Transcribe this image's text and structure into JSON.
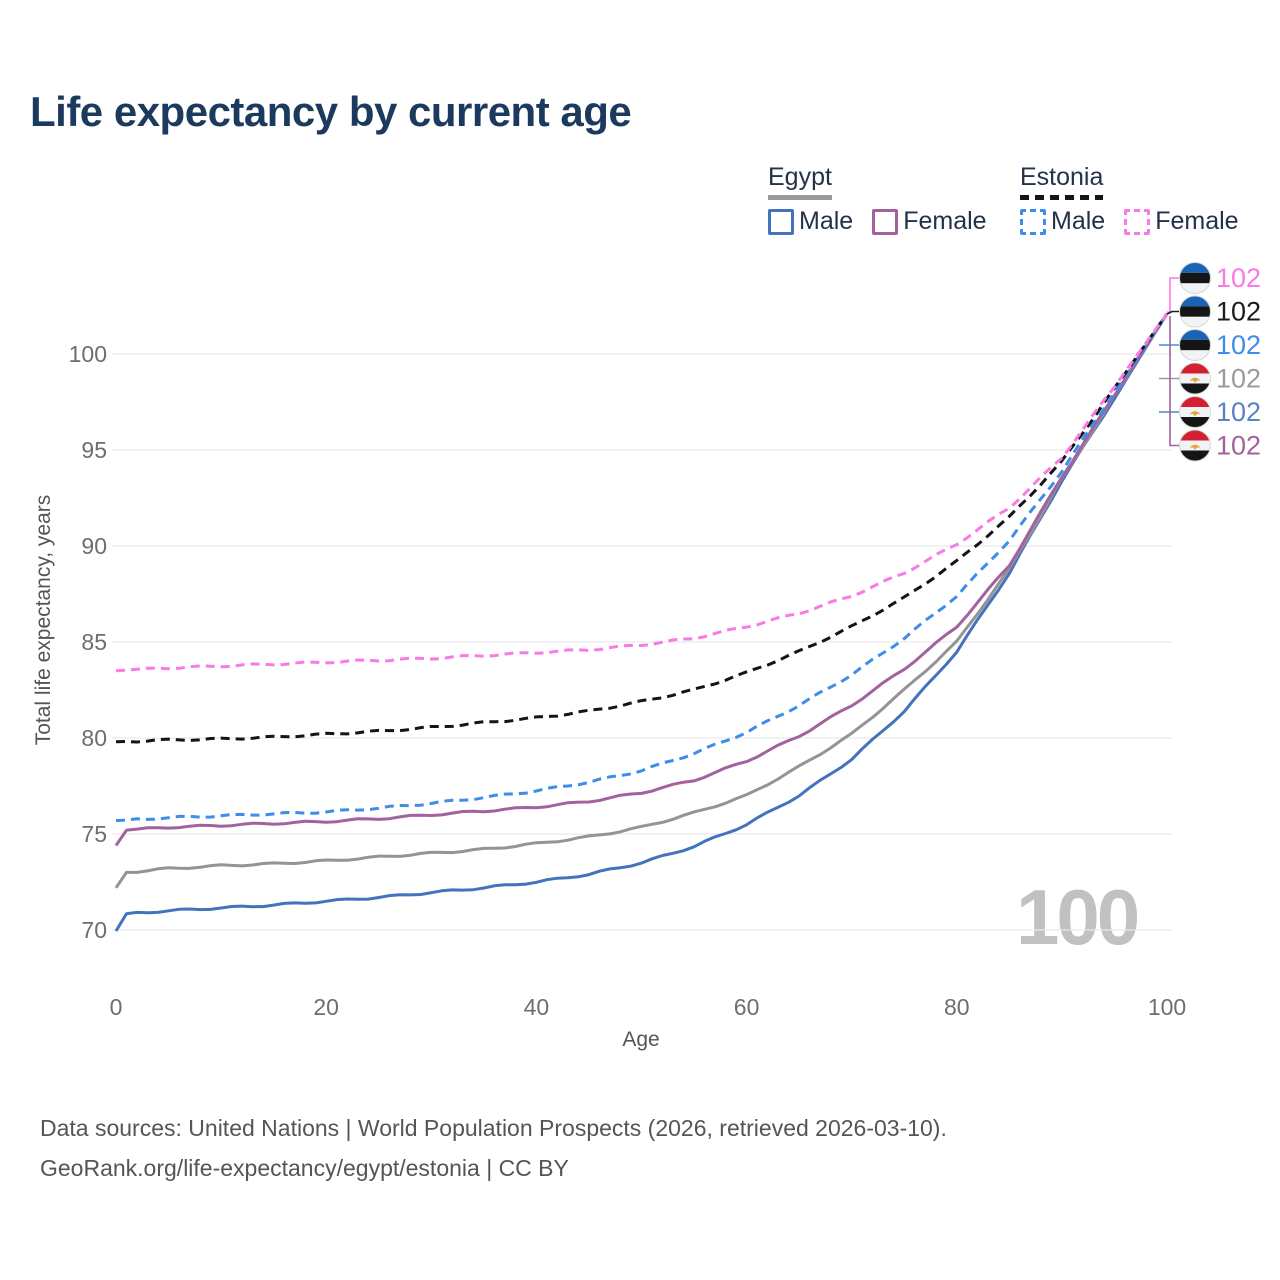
{
  "legend": {
    "groups": [
      {
        "label": "Egypt",
        "line_style": "solid",
        "underline_color": "#9a9a9a",
        "items": [
          {
            "label": "Male",
            "color": "#4273bc",
            "swatch": "solid"
          },
          {
            "label": "Female",
            "color": "#a2629d",
            "swatch": "solid"
          }
        ]
      },
      {
        "label": "Estonia",
        "line_style": "dashed",
        "underline_color": "#151515",
        "items": [
          {
            "label": "Male",
            "color": "#3d8de9",
            "swatch": "dashed"
          },
          {
            "label": "Female",
            "color": "#f97ae3",
            "swatch": "dashed"
          }
        ]
      }
    ]
  },
  "chart_data": {
    "type": "line",
    "title": "Life expectancy by current age",
    "xlabel": "Age",
    "ylabel": "Total life expectancy, years",
    "xlim": [
      0,
      100
    ],
    "ylim": [
      69.5,
      103
    ],
    "x_ticks": [
      0,
      20,
      40,
      60,
      80,
      100
    ],
    "y_ticks": [
      70,
      75,
      80,
      85,
      90,
      95,
      100
    ],
    "grid": "horizontal",
    "watermark": "100",
    "series": [
      {
        "id": "egypt-male",
        "name": "Egypt Male",
        "country": "Egypt",
        "sex": "Male",
        "style": "solid",
        "color": "#4273bc",
        "end_value": 102,
        "points": [
          [
            0,
            69.95
          ],
          [
            1,
            70.85
          ],
          [
            5,
            71.0
          ],
          [
            10,
            71.15
          ],
          [
            15,
            71.3
          ],
          [
            20,
            71.5
          ],
          [
            25,
            71.7
          ],
          [
            30,
            71.95
          ],
          [
            35,
            72.2
          ],
          [
            40,
            72.5
          ],
          [
            45,
            72.9
          ],
          [
            50,
            73.5
          ],
          [
            55,
            74.35
          ],
          [
            60,
            75.5
          ],
          [
            65,
            77.0
          ],
          [
            70,
            78.9
          ],
          [
            75,
            81.4
          ],
          [
            80,
            84.5
          ],
          [
            85,
            88.6
          ],
          [
            90,
            93.4
          ],
          [
            95,
            97.7
          ],
          [
            100,
            102.1
          ]
        ]
      },
      {
        "id": "egypt-both",
        "name": "Egypt (both sexes)",
        "country": "Egypt",
        "sex": "Both",
        "style": "solid",
        "color": "#949494",
        "end_value": 102,
        "points": [
          [
            0,
            72.2
          ],
          [
            1,
            73.0
          ],
          [
            5,
            73.2
          ],
          [
            10,
            73.35
          ],
          [
            15,
            73.45
          ],
          [
            20,
            73.6
          ],
          [
            25,
            73.8
          ],
          [
            30,
            74.0
          ],
          [
            35,
            74.2
          ],
          [
            40,
            74.5
          ],
          [
            45,
            74.85
          ],
          [
            50,
            75.35
          ],
          [
            55,
            76.1
          ],
          [
            60,
            77.0
          ],
          [
            65,
            78.5
          ],
          [
            70,
            80.2
          ],
          [
            75,
            82.5
          ],
          [
            80,
            85.0
          ],
          [
            85,
            88.8
          ],
          [
            90,
            93.5
          ],
          [
            95,
            97.8
          ],
          [
            100,
            102.1
          ]
        ]
      },
      {
        "id": "egypt-female",
        "name": "Egypt Female",
        "country": "Egypt",
        "sex": "Female",
        "style": "solid",
        "color": "#a2629d",
        "end_value": 102,
        "points": [
          [
            0,
            74.4
          ],
          [
            1,
            75.2
          ],
          [
            5,
            75.35
          ],
          [
            10,
            75.45
          ],
          [
            15,
            75.55
          ],
          [
            20,
            75.65
          ],
          [
            25,
            75.8
          ],
          [
            30,
            76.0
          ],
          [
            35,
            76.2
          ],
          [
            40,
            76.4
          ],
          [
            45,
            76.7
          ],
          [
            50,
            77.15
          ],
          [
            55,
            77.8
          ],
          [
            60,
            78.8
          ],
          [
            65,
            80.1
          ],
          [
            70,
            81.7
          ],
          [
            75,
            83.6
          ],
          [
            80,
            85.8
          ],
          [
            85,
            89.0
          ],
          [
            90,
            93.6
          ],
          [
            95,
            97.85
          ],
          [
            100,
            102.1
          ]
        ]
      },
      {
        "id": "estonia-male",
        "name": "Estonia Male",
        "country": "Estonia",
        "sex": "Male",
        "style": "dashed",
        "color": "#3d8de9",
        "end_value": 102,
        "points": [
          [
            0,
            75.7
          ],
          [
            5,
            75.85
          ],
          [
            10,
            75.95
          ],
          [
            15,
            76.05
          ],
          [
            20,
            76.15
          ],
          [
            25,
            76.35
          ],
          [
            30,
            76.6
          ],
          [
            35,
            76.9
          ],
          [
            40,
            77.25
          ],
          [
            45,
            77.7
          ],
          [
            50,
            78.3
          ],
          [
            55,
            79.2
          ],
          [
            60,
            80.3
          ],
          [
            65,
            81.7
          ],
          [
            70,
            83.3
          ],
          [
            75,
            85.2
          ],
          [
            80,
            87.4
          ],
          [
            85,
            90.3
          ],
          [
            90,
            93.9
          ],
          [
            95,
            98.0
          ],
          [
            100,
            102.1
          ]
        ]
      },
      {
        "id": "estonia-both",
        "name": "Estonia (both sexes)",
        "country": "Estonia",
        "sex": "Both",
        "style": "dashed",
        "color": "#141414",
        "end_value": 102,
        "points": [
          [
            0,
            79.8
          ],
          [
            5,
            79.9
          ],
          [
            10,
            79.95
          ],
          [
            15,
            80.05
          ],
          [
            20,
            80.2
          ],
          [
            25,
            80.35
          ],
          [
            30,
            80.55
          ],
          [
            35,
            80.8
          ],
          [
            40,
            81.05
          ],
          [
            45,
            81.4
          ],
          [
            50,
            81.9
          ],
          [
            55,
            82.5
          ],
          [
            60,
            83.4
          ],
          [
            65,
            84.5
          ],
          [
            70,
            85.8
          ],
          [
            75,
            87.3
          ],
          [
            80,
            89.2
          ],
          [
            85,
            91.5
          ],
          [
            90,
            94.4
          ],
          [
            95,
            98.2
          ],
          [
            100,
            102.1
          ]
        ]
      },
      {
        "id": "estonia-female",
        "name": "Estonia Female",
        "country": "Estonia",
        "sex": "Female",
        "style": "dashed",
        "color": "#f97ae3",
        "end_value": 102,
        "points": [
          [
            0,
            83.5
          ],
          [
            5,
            83.65
          ],
          [
            10,
            83.75
          ],
          [
            15,
            83.85
          ],
          [
            20,
            83.95
          ],
          [
            25,
            84.05
          ],
          [
            30,
            84.15
          ],
          [
            35,
            84.3
          ],
          [
            40,
            84.45
          ],
          [
            45,
            84.6
          ],
          [
            50,
            84.85
          ],
          [
            55,
            85.2
          ],
          [
            60,
            85.8
          ],
          [
            65,
            86.5
          ],
          [
            70,
            87.4
          ],
          [
            75,
            88.6
          ],
          [
            80,
            90.1
          ],
          [
            85,
            92.0
          ],
          [
            90,
            94.6
          ],
          [
            95,
            98.3
          ],
          [
            100,
            102.1
          ]
        ]
      }
    ],
    "end_labels": [
      {
        "flag": "estonia",
        "series": "estonia-female",
        "value": "102",
        "color": "#f97ae3"
      },
      {
        "flag": "estonia",
        "series": "estonia-both",
        "value": "102",
        "color": "#1c1c1c"
      },
      {
        "flag": "estonia",
        "series": "estonia-male",
        "value": "102",
        "color": "#3d8de9"
      },
      {
        "flag": "egypt",
        "series": "egypt-both",
        "value": "102",
        "color": "#9b9b9b"
      },
      {
        "flag": "egypt",
        "series": "egypt-male",
        "value": "102",
        "color": "#5b82c6"
      },
      {
        "flag": "egypt",
        "series": "egypt-female",
        "value": "102",
        "color": "#a2629d"
      }
    ],
    "flag_colors": {
      "estonia": {
        "top": "#1964b4",
        "middle": "#151515",
        "bottom": "#f2f3f5"
      },
      "egypt": {
        "top": "#d22030",
        "middle": "#f2f3f5",
        "bottom": "#151515",
        "emblem": "#e6a23e"
      }
    }
  },
  "footer": {
    "line1": "Data sources: United Nations | World Population Prospects (2026, retrieved 2026-03-10).",
    "line2": "GeoRank.org/life-expectancy/egypt/estonia | CC BY"
  }
}
